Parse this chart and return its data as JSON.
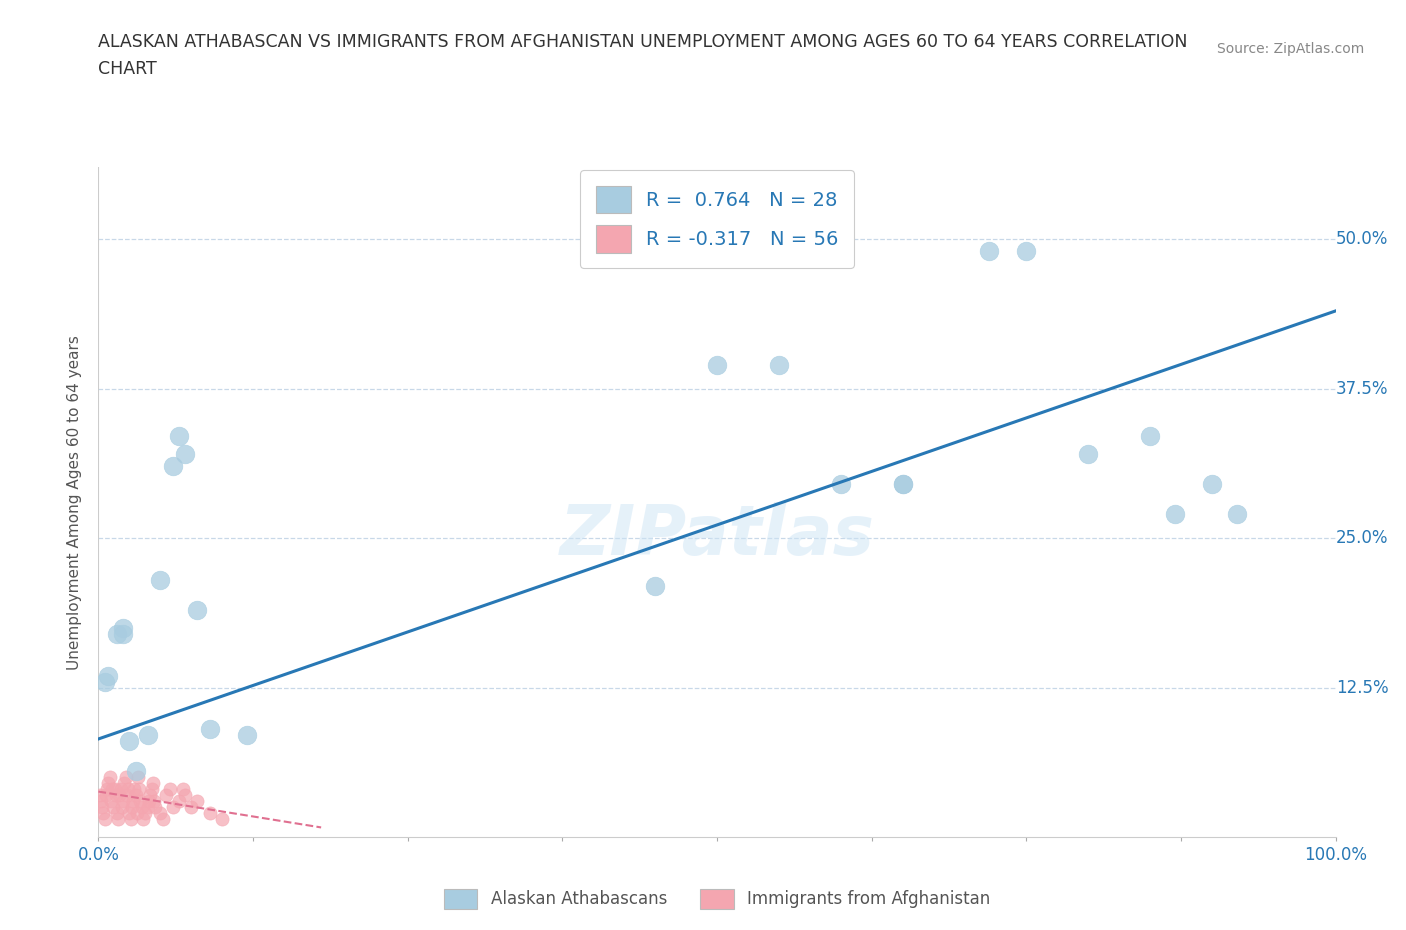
{
  "title_line1": "ALASKAN ATHABASCAN VS IMMIGRANTS FROM AFGHANISTAN UNEMPLOYMENT AMONG AGES 60 TO 64 YEARS CORRELATION",
  "title_line2": "CHART",
  "source": "Source: ZipAtlas.com",
  "ylabel": "Unemployment Among Ages 60 to 64 years",
  "xlim": [
    0.0,
    1.0
  ],
  "ylim": [
    0.0,
    0.56
  ],
  "xticks": [
    0.0,
    0.125,
    0.25,
    0.375,
    0.5,
    0.625,
    0.75,
    0.875,
    1.0
  ],
  "xticklabels": [
    "0.0%",
    "",
    "",
    "",
    "",
    "",
    "",
    "",
    "100.0%"
  ],
  "yticks": [
    0.0,
    0.125,
    0.25,
    0.375,
    0.5
  ],
  "yticklabels": [
    "",
    "12.5%",
    "25.0%",
    "37.5%",
    "50.0%"
  ],
  "blue_color": "#a8cce0",
  "pink_color": "#f4a6b0",
  "line_blue": "#2878b5",
  "line_pink": "#e07090",
  "R_blue": 0.764,
  "N_blue": 28,
  "R_pink": -0.317,
  "N_pink": 56,
  "legend1_label": "Alaskan Athabascans",
  "legend2_label": "Immigrants from Afghanistan",
  "watermark": "ZIPatlas",
  "blue_points_x": [
    0.005,
    0.008,
    0.015,
    0.02,
    0.02,
    0.025,
    0.03,
    0.04,
    0.05,
    0.06,
    0.065,
    0.07,
    0.08,
    0.09,
    0.12,
    0.45,
    0.5,
    0.55,
    0.6,
    0.65,
    0.65,
    0.8,
    0.85,
    0.87,
    0.72,
    0.75,
    0.9,
    0.92
  ],
  "blue_points_y": [
    0.13,
    0.135,
    0.17,
    0.175,
    0.17,
    0.08,
    0.055,
    0.085,
    0.215,
    0.31,
    0.335,
    0.32,
    0.19,
    0.09,
    0.085,
    0.21,
    0.395,
    0.395,
    0.295,
    0.295,
    0.295,
    0.32,
    0.335,
    0.27,
    0.49,
    0.49,
    0.295,
    0.27
  ],
  "pink_points_x": [
    0.001,
    0.002,
    0.003,
    0.004,
    0.005,
    0.006,
    0.007,
    0.008,
    0.009,
    0.01,
    0.011,
    0.012,
    0.013,
    0.014,
    0.015,
    0.016,
    0.017,
    0.018,
    0.019,
    0.02,
    0.021,
    0.022,
    0.023,
    0.024,
    0.025,
    0.026,
    0.027,
    0.028,
    0.029,
    0.03,
    0.031,
    0.032,
    0.033,
    0.034,
    0.035,
    0.036,
    0.038,
    0.04,
    0.041,
    0.042,
    0.043,
    0.044,
    0.045,
    0.046,
    0.05,
    0.052,
    0.055,
    0.058,
    0.06,
    0.065,
    0.068,
    0.07,
    0.075,
    0.08,
    0.09,
    0.1
  ],
  "pink_points_y": [
    0.035,
    0.03,
    0.025,
    0.02,
    0.015,
    0.035,
    0.04,
    0.045,
    0.05,
    0.03,
    0.04,
    0.025,
    0.04,
    0.035,
    0.02,
    0.015,
    0.035,
    0.04,
    0.025,
    0.03,
    0.045,
    0.05,
    0.035,
    0.04,
    0.02,
    0.015,
    0.025,
    0.03,
    0.04,
    0.035,
    0.02,
    0.05,
    0.04,
    0.03,
    0.025,
    0.015,
    0.02,
    0.025,
    0.03,
    0.035,
    0.04,
    0.045,
    0.03,
    0.025,
    0.02,
    0.015,
    0.035,
    0.04,
    0.025,
    0.03,
    0.04,
    0.035,
    0.025,
    0.03,
    0.02,
    0.015
  ],
  "blue_trendline_x": [
    0.0,
    1.0
  ],
  "blue_trendline_y_start": 0.082,
  "blue_trendline_y_end": 0.44,
  "pink_trendline_x": [
    0.0,
    0.18
  ],
  "pink_trendline_y_start": 0.038,
  "pink_trendline_y_end": 0.008
}
